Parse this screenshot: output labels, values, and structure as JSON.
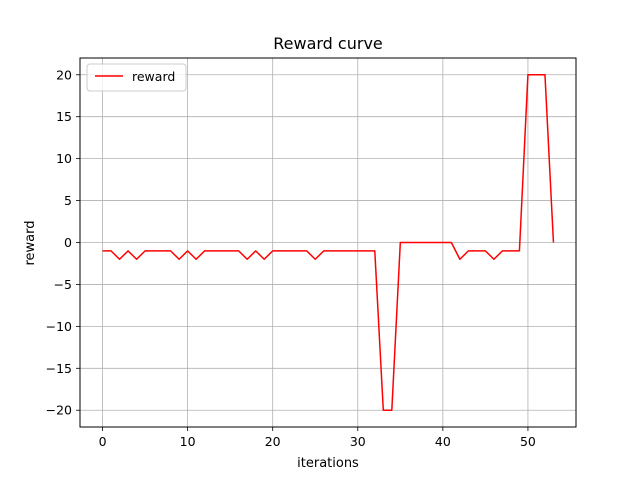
{
  "chart_data": {
    "type": "line",
    "title": "Reward curve",
    "xlabel": "iterations",
    "ylabel": "reward",
    "xlim": [
      -2.65,
      55.65
    ],
    "ylim": [
      -22,
      22
    ],
    "xticks": [
      0,
      10,
      20,
      30,
      40,
      50
    ],
    "yticks": [
      -20,
      -15,
      -10,
      -5,
      0,
      5,
      10,
      15,
      20
    ],
    "ytick_labels": [
      "−20",
      "−15",
      "−10",
      "−5",
      "0",
      "5",
      "10",
      "15",
      "20"
    ],
    "grid": true,
    "legend_position": "upper-left",
    "series": [
      {
        "name": "reward",
        "color": "#ff0000",
        "x": [
          0,
          1,
          2,
          3,
          4,
          5,
          6,
          7,
          8,
          9,
          10,
          11,
          12,
          13,
          14,
          15,
          16,
          17,
          18,
          19,
          20,
          21,
          22,
          23,
          24,
          25,
          26,
          27,
          28,
          29,
          30,
          31,
          32,
          33,
          34,
          35,
          36,
          37,
          38,
          39,
          40,
          41,
          42,
          43,
          44,
          45,
          46,
          47,
          48,
          49,
          50,
          51,
          52,
          53
        ],
        "values": [
          -1,
          -1,
          -2,
          -1,
          -2,
          -1,
          -1,
          -1,
          -1,
          -2,
          -1,
          -2,
          -1,
          -1,
          -1,
          -1,
          -1,
          -2,
          -1,
          -2,
          -1,
          -1,
          -1,
          -1,
          -1,
          -2,
          -1,
          -1,
          -1,
          -1,
          -1,
          -1,
          -1,
          -20,
          -20,
          0,
          0,
          0,
          0,
          0,
          0,
          0,
          -2,
          -1,
          -1,
          -1,
          -2,
          -1,
          -1,
          -1,
          20,
          20,
          20,
          0
        ]
      }
    ]
  }
}
